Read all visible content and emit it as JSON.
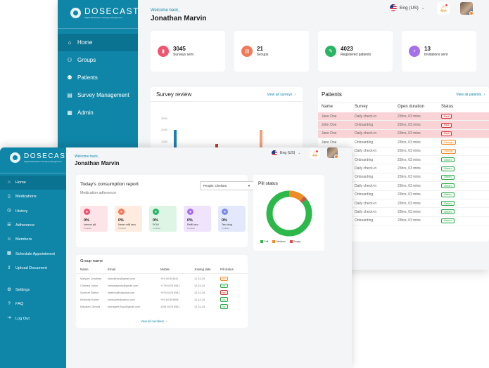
{
  "brand": {
    "name": "DOSECAST",
    "tagline": "Digital Medication Therapy Management"
  },
  "colors": {
    "primary": "#0f86a8",
    "primary_dark": "#0a7391",
    "danger": "#d03838",
    "warning": "#f08a24",
    "success": "#2aa84a"
  },
  "user": {
    "welcome": "Welcome back,",
    "name": "Jonathan Marvin"
  },
  "language": {
    "label": "Eng (US)",
    "icon": "us-flag-icon"
  },
  "back": {
    "nav": [
      {
        "label": "Home",
        "icon": "home-icon",
        "active": true
      },
      {
        "label": "Groups",
        "icon": "groups-icon"
      },
      {
        "label": "Patients",
        "icon": "patients-icon"
      },
      {
        "label": "Survey Management",
        "icon": "survey-icon"
      },
      {
        "label": "Admin",
        "icon": "admin-icon"
      }
    ],
    "stats": [
      {
        "value": "3045",
        "label": "Surveys sent",
        "color": "#f0556f",
        "icon": "chart-icon"
      },
      {
        "value": "21",
        "label": "Groups",
        "color": "#f0795a",
        "icon": "document-icon"
      },
      {
        "value": "4023",
        "label": "Registered patients",
        "color": "#28b463",
        "icon": "pill-icon"
      },
      {
        "value": "13",
        "label": "Invitations sent",
        "color": "#a670e8",
        "icon": "user-add-icon"
      }
    ],
    "survey_review": {
      "title": "Survey review",
      "link": "View all surveys",
      "axis": [
        "3000",
        "2000",
        "1000"
      ]
    },
    "patients": {
      "title": "Patients",
      "link": "View all patients",
      "headers": [
        "Name",
        "Survey",
        "Open duration",
        "Status"
      ],
      "rows": [
        {
          "name": "Jane Doe",
          "survey": "Daily check-in",
          "duration": "23hrs, 03 mins",
          "status": "Red",
          "tone": "red",
          "highlight": true
        },
        {
          "name": "John Doe",
          "survey": "Onboarding",
          "duration": "23hrs, 03 mins",
          "status": "Red",
          "tone": "red",
          "highlight": true
        },
        {
          "name": "Jane Doe",
          "survey": "Daily check-in",
          "duration": "23hrs, 03 mins",
          "status": "Red",
          "tone": "red",
          "highlight": true
        },
        {
          "name": "Jane Doe",
          "survey": "Onboarding",
          "duration": "23hrs, 03 mins",
          "status": "Orange",
          "tone": "orange"
        },
        {
          "name": "",
          "survey": "Daily check-in",
          "duration": "23hrs, 03 mins",
          "status": "Orange",
          "tone": "orange"
        },
        {
          "name": "",
          "survey": "Onboarding",
          "duration": "23hrs, 03 mins",
          "status": "Green",
          "tone": "green"
        },
        {
          "name": "",
          "survey": "Daily check-in",
          "duration": "23hrs, 03 mins",
          "status": "Green",
          "tone": "green"
        },
        {
          "name": "",
          "survey": "Onboarding",
          "duration": "23hrs, 03 mins",
          "status": "Green",
          "tone": "green"
        },
        {
          "name": "",
          "survey": "Daily check-in",
          "duration": "23hrs, 03 mins",
          "status": "Green",
          "tone": "green"
        },
        {
          "name": "",
          "survey": "Onboarding",
          "duration": "23hrs, 03 mins",
          "status": "Green",
          "tone": "green"
        },
        {
          "name": "",
          "survey": "Daily check-in",
          "duration": "23hrs, 03 mins",
          "status": "Green",
          "tone": "green"
        },
        {
          "name": "",
          "survey": "Daily check-in",
          "duration": "23hrs, 03 mins",
          "status": "Green",
          "tone": "green"
        },
        {
          "name": "",
          "survey": "Onboarding",
          "duration": "23hrs, 03 mins",
          "status": "Green",
          "tone": "green"
        }
      ]
    }
  },
  "front": {
    "nav": [
      {
        "label": "Home",
        "icon": "home-icon",
        "active": true
      },
      {
        "label": "Medications",
        "icon": "medication-icon"
      },
      {
        "label": "History",
        "icon": "history-icon"
      },
      {
        "label": "Adherence",
        "icon": "adherence-icon"
      },
      {
        "label": "Members",
        "icon": "members-icon"
      },
      {
        "label": "Schedule Appointment",
        "icon": "calendar-icon"
      },
      {
        "label": "Upload Document",
        "icon": "upload-icon"
      }
    ],
    "bottom_nav": [
      {
        "label": "Settings",
        "icon": "gear-icon"
      },
      {
        "label": "FAQ",
        "icon": "faq-icon"
      },
      {
        "label": "Log Out",
        "icon": "logout-icon"
      }
    ],
    "consumption": {
      "title": "Today's consumption report",
      "subtitle": "Medication adherence",
      "select_value": "People: Chelsea",
      "metrics": [
        {
          "value": "0%",
          "label": "Interval pill",
          "sub": "0 entries",
          "color": "#f0556f",
          "bg": "#fde4e8"
        },
        {
          "value": "0%",
          "label": "Never refill taco",
          "sub": "0 entries",
          "color": "#f0795a",
          "bg": "#fdecdf"
        },
        {
          "value": "0%",
          "label": "PCHI",
          "sub": "0 entries",
          "color": "#28b463",
          "bg": "#def5e6"
        },
        {
          "value": "0%",
          "label": "Refill taco",
          "sub": "0 entries",
          "color": "#a670e8",
          "bg": "#efe4fc"
        },
        {
          "value": "0%",
          "label": "Test drug",
          "sub": "0 entries",
          "color": "#7a8ce8",
          "bg": "#e3e8fc"
        }
      ]
    },
    "pill_status": {
      "title": "Pill status",
      "legend": [
        {
          "label": "Full",
          "color": "#2cb84a"
        },
        {
          "label": "Medium",
          "color": "#f08a24"
        },
        {
          "label": "Empty",
          "color": "#e04a4a"
        }
      ]
    },
    "group": {
      "title": "Group name",
      "headers": [
        "Name",
        "Email",
        "Mobile",
        "Joining date",
        "Pill status"
      ],
      "rows": [
        {
          "name": "Maryam Jonathan",
          "email": "mjonathan@gmail.com",
          "mobile": "+91 9476 5541",
          "date": "12-10-24",
          "status": "0%",
          "tone": "orange"
        },
        {
          "name": "Chelsea Jones",
          "email": "chelseajones@gmail.com",
          "mobile": "+178 6478 5541",
          "date": "12-10-24",
          "status": "Ok",
          "tone": "green"
        },
        {
          "name": "Spencer Barton",
          "email": "sbarton@tutanota.com",
          "mobile": "+976 6478 5541",
          "date": "12-10-24",
          "status": "0%",
          "tone": "red"
        },
        {
          "name": "Kimberly Kutzer",
          "email": "kimkutzer@yahoo.com",
          "mobile": "+91 6478 9568",
          "date": "12-10-24",
          "status": "Ok",
          "tone": "green"
        },
        {
          "name": "Mahalan Olmard",
          "email": "mahagert.floyd@gmail.com",
          "mobile": "1254 5478 5541",
          "date": "12-10-24",
          "status": "Ok",
          "tone": "green"
        }
      ],
      "link": "View all members"
    }
  }
}
